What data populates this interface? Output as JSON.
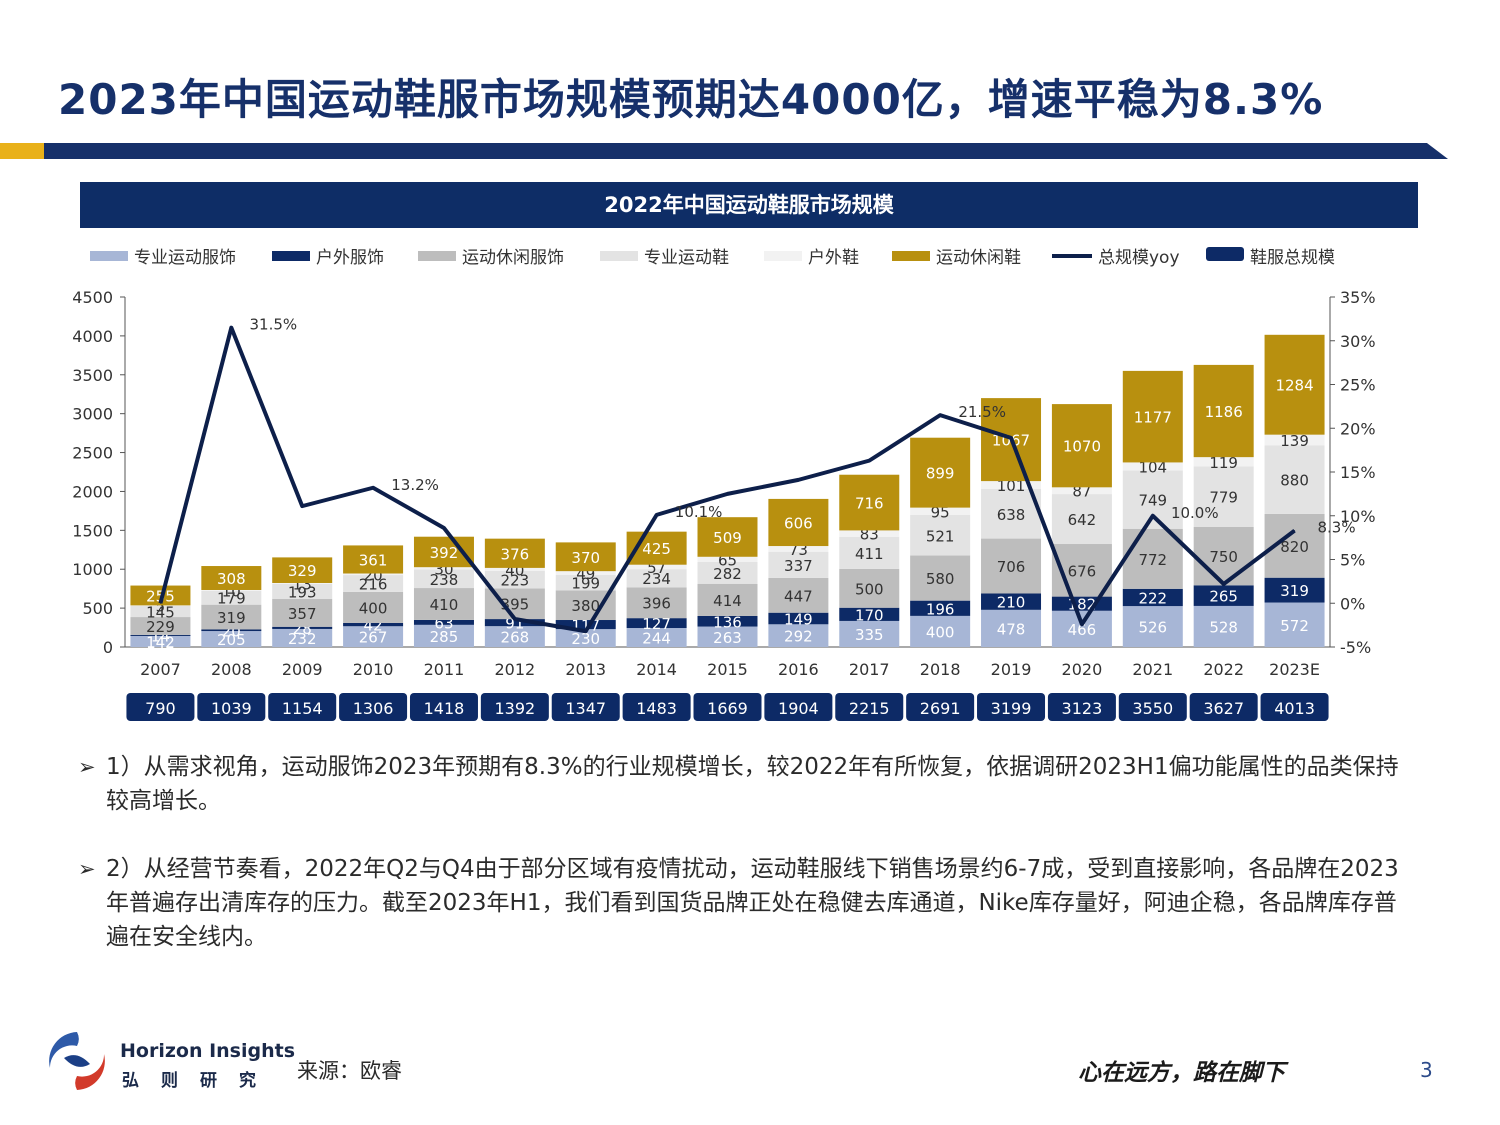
{
  "page": {
    "title": "2023年中国运动鞋服市场规模预期达4000亿，增速平稳为8.3%",
    "page_number": "3",
    "source": "来源：欧睿",
    "slogan": "心在远方，路在脚下",
    "brand_en": "Horizon Insights",
    "brand_cn": "弘则研究",
    "paragraphs": [
      "1）从需求视角，运动服饰2023年预期有8.3%的行业规模增长，较2022年有所恢复，依据调研2023H1偏功能属性的品类保持较高增长。",
      "2）从经营节奏看，2022年Q2与Q4由于部分区域有疫情扰动，运动鞋服线下销售场景约6-7成，受到直接影响，各品牌在2023年普遍存出清库存的压力。截至2023年H1，我们看到国货品牌正处在稳健去库通道，Nike库存量好，阿迪企稳，各品牌库存普遍在安全线内。"
    ],
    "arrow": "➢"
  },
  "colors": {
    "title": "#16306a",
    "header_bg": "#0e2d66",
    "accent_gold": "#e9b11a"
  },
  "chart_data": {
    "type": "bar",
    "stacked": true,
    "title": "2022年中国运动鞋服市场规模",
    "categories": [
      "2007",
      "2008",
      "2009",
      "2010",
      "2011",
      "2012",
      "2013",
      "2014",
      "2015",
      "2016",
      "2017",
      "2018",
      "2019",
      "2020",
      "2021",
      "2022",
      "2023E"
    ],
    "series": [
      {
        "name": "专业运动服饰",
        "color": "#a7b6d6",
        "label_color": "#ffffff",
        "values": [
          142,
          205,
          232,
          267,
          285,
          268,
          230,
          244,
          263,
          292,
          335,
          400,
          478,
          466,
          526,
          528,
          572
        ]
      },
      {
        "name": "户外服饰",
        "color": "#0d2a66",
        "label_color": "#ffffff",
        "values": [
          14,
          20,
          28,
          42,
          63,
          91,
          117,
          127,
          136,
          149,
          170,
          196,
          210,
          182,
          222,
          265,
          319
        ]
      },
      {
        "name": "运动休闲服饰",
        "color": "#bdbdbd",
        "label_color": "#333333",
        "values": [
          229,
          319,
          357,
          400,
          410,
          395,
          380,
          396,
          414,
          447,
          500,
          580,
          706,
          676,
          772,
          750,
          820
        ]
      },
      {
        "name": "专业运动鞋",
        "color": "#e3e3e3",
        "label_color": "#333333",
        "values": [
          145,
          179,
          193,
          216,
          238,
          223,
          199,
          234,
          282,
          337,
          411,
          521,
          638,
          642,
          749,
          779,
          880
        ]
      },
      {
        "name": "户外鞋",
        "color": "#f2f2f2",
        "label_color": "#333333",
        "values": [
          5,
          10,
          13,
          20,
          30,
          40,
          49,
          57,
          65,
          73,
          83,
          95,
          101,
          87,
          104,
          119,
          139
        ]
      },
      {
        "name": "运动休闲鞋",
        "color": "#b8900f",
        "label_color": "#ffffff",
        "values": [
          255,
          308,
          329,
          361,
          392,
          376,
          370,
          425,
          509,
          606,
          716,
          899,
          1067,
          1070,
          1177,
          1186,
          1284
        ]
      }
    ],
    "totals": {
      "name": "鞋服总规模",
      "values": [
        790,
        1039,
        1154,
        1306,
        1418,
        1392,
        1347,
        1483,
        1669,
        1904,
        2215,
        2691,
        3199,
        3123,
        3550,
        3627,
        4013
      ]
    },
    "yoy": {
      "name": "总规模yoy",
      "values": [
        0.0,
        31.5,
        11.1,
        13.2,
        8.6,
        -1.8,
        -3.2,
        10.1,
        12.5,
        14.1,
        16.3,
        21.5,
        18.9,
        -2.4,
        10.0,
        2.2,
        8.3
      ],
      "labels": {
        "1": "31.5%",
        "3": "13.2%",
        "7": "10.1%",
        "11": "21.5%",
        "14": "10.0%",
        "16": "8.3%"
      }
    },
    "y_left": {
      "min": 0,
      "max": 4500,
      "ticks": [
        "0",
        "500",
        "1000",
        "1500",
        "2000",
        "2500",
        "3000",
        "3500",
        "4000",
        "4500"
      ]
    },
    "y_right": {
      "min": -5,
      "max": 35,
      "ticks": [
        "-5%",
        "0%",
        "5%",
        "10%",
        "15%",
        "20%",
        "25%",
        "30%",
        "35%"
      ]
    },
    "legend_position": "top",
    "grid": false
  }
}
